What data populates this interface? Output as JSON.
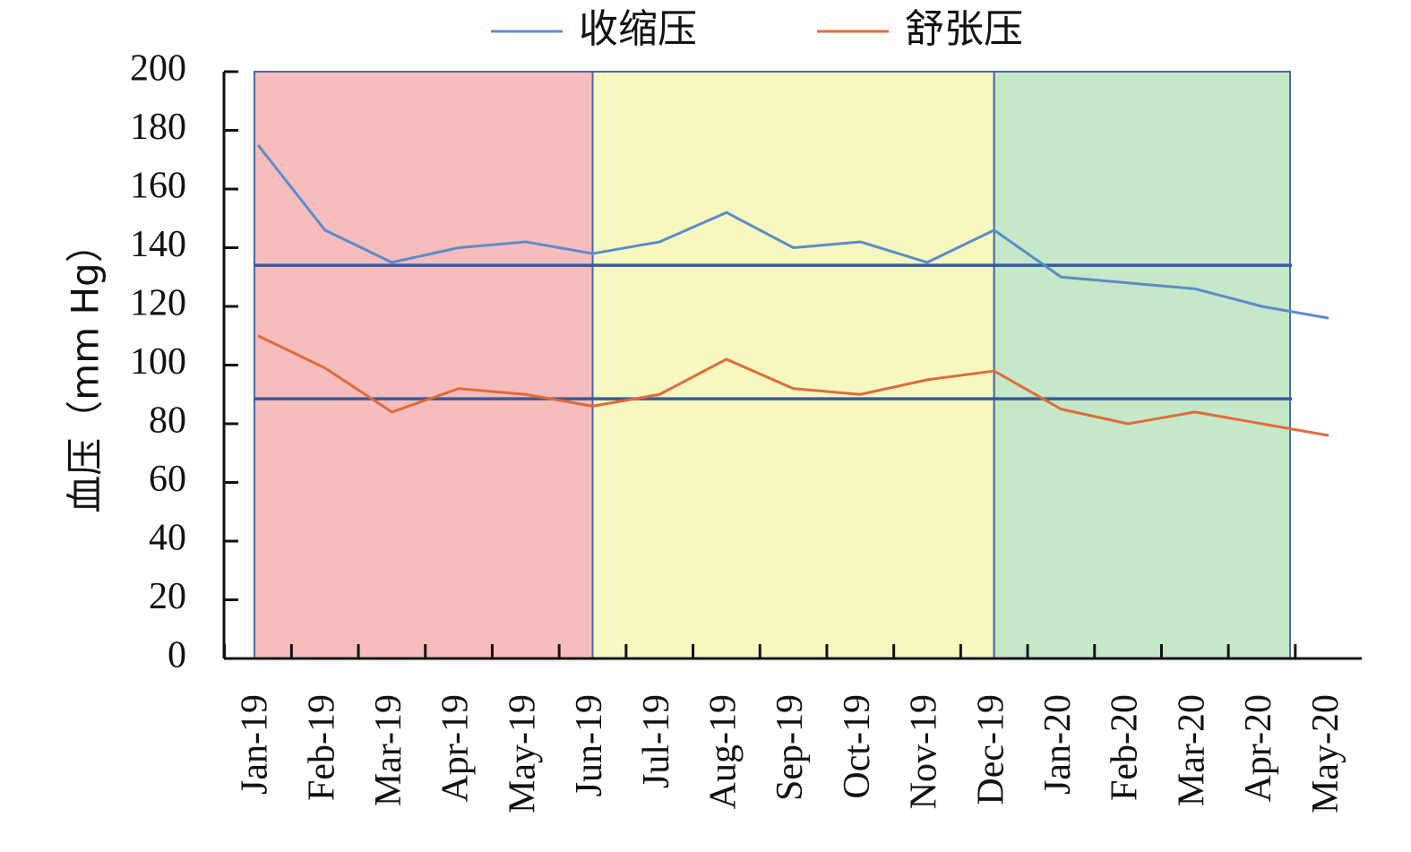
{
  "chart_data": {
    "type": "line",
    "ylabel": "血压（mm Hg）",
    "ylim": [
      0,
      200
    ],
    "yticks": [
      "0",
      "20",
      "40",
      "60",
      "80",
      "100",
      "120",
      "140",
      "160",
      "180",
      "200"
    ],
    "categories": [
      "Jan-19",
      "Feb-19",
      "Mar-19",
      "Apr-19",
      "May-19",
      "Jun-19",
      "Jul-19",
      "Aug-19",
      "Sep-19",
      "Oct-19",
      "Nov-19",
      "Dec-19",
      "Jan-20",
      "Feb-20",
      "Mar-20",
      "Apr-20",
      "May-20"
    ],
    "series": [
      {
        "name": "收缩压",
        "color": "#5b8cc8",
        "values": [
          175,
          146,
          135,
          140,
          142,
          138,
          142,
          152,
          140,
          142,
          135,
          146,
          130,
          128,
          126,
          120,
          116
        ]
      },
      {
        "name": "舒张压",
        "color": "#e06b3a",
        "values": [
          110,
          99,
          84,
          92,
          90,
          86,
          90,
          102,
          92,
          90,
          95,
          98,
          85,
          80,
          84,
          80,
          76
        ]
      }
    ],
    "reference_lines": [
      {
        "value": 134,
        "color": "#3b5a9a"
      },
      {
        "value": 88.5,
        "color": "#3b5a9a"
      }
    ],
    "shaded_regions": [
      {
        "from": "Jan-19",
        "to": "Jun-19",
        "color": "#f7bcbc"
      },
      {
        "from": "Jun-19",
        "to": "Dec-19",
        "color": "#f7f7c0"
      },
      {
        "from": "Dec-19",
        "to": "May-20",
        "color": "#c4e8c8"
      }
    ],
    "legend_position": "top-center",
    "grid": false
  }
}
